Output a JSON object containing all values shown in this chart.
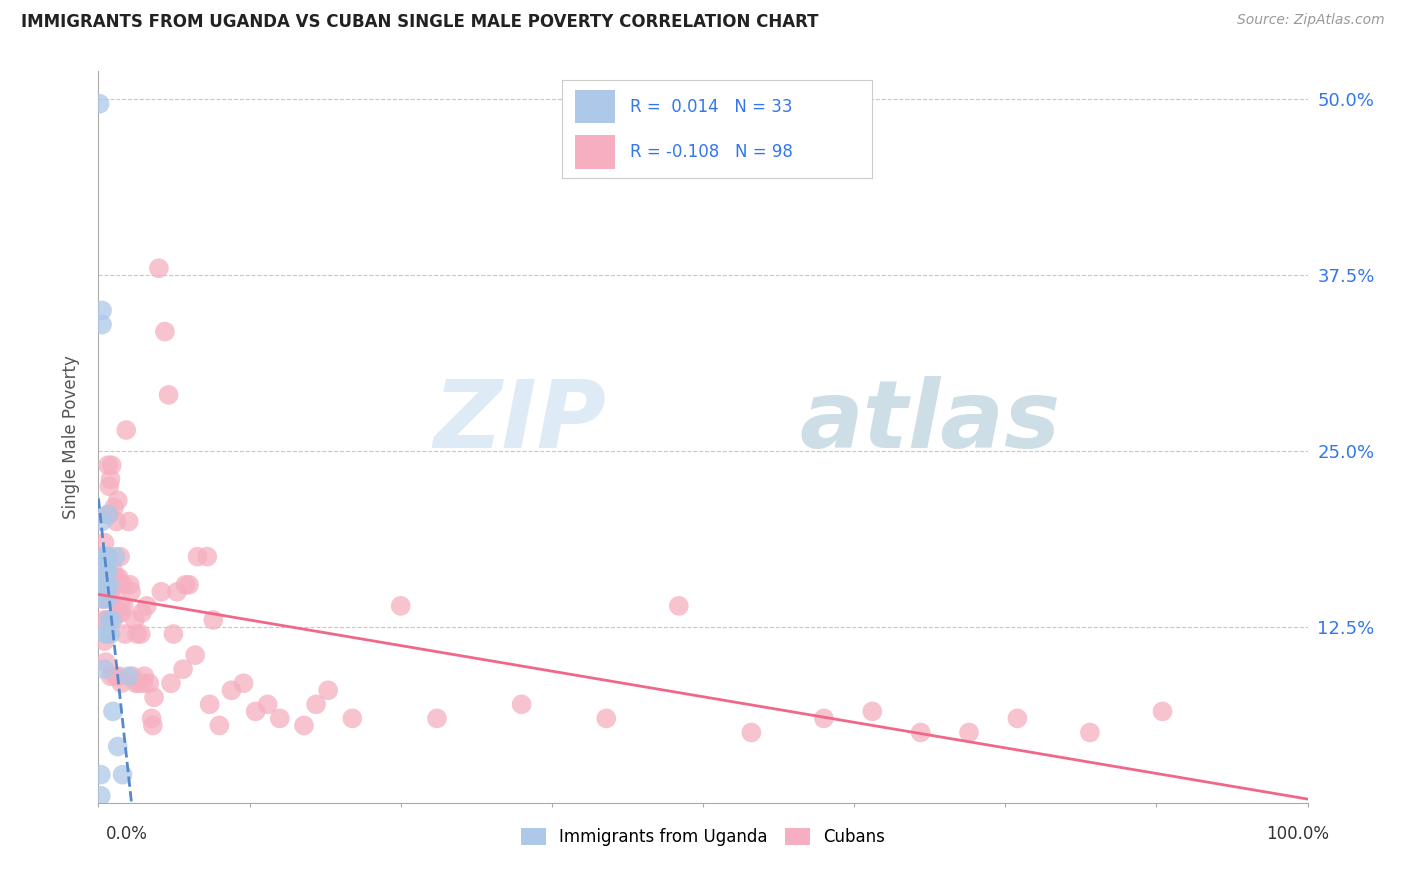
{
  "title": "IMMIGRANTS FROM UGANDA VS CUBAN SINGLE MALE POVERTY CORRELATION CHART",
  "source": "Source: ZipAtlas.com",
  "ylabel": "Single Male Poverty",
  "y_ticks": [
    0.0,
    0.125,
    0.25,
    0.375,
    0.5
  ],
  "y_tick_labels": [
    "",
    "12.5%",
    "25.0%",
    "37.5%",
    "50.0%"
  ],
  "legend1_r": "0.014",
  "legend1_n": "33",
  "legend2_r": "-0.108",
  "legend2_n": "98",
  "background_color": "#ffffff",
  "uganda_color": "#adc8e8",
  "cuban_color": "#f5afc0",
  "uganda_line_color": "#5588cc",
  "cuban_line_color": "#f06888",
  "watermark_zip": "ZIP",
  "watermark_atlas": "atlas",
  "uganda_scatter_x": [
    0.001,
    0.002,
    0.002,
    0.003,
    0.003,
    0.003,
    0.004,
    0.004,
    0.004,
    0.005,
    0.005,
    0.005,
    0.005,
    0.006,
    0.006,
    0.006,
    0.007,
    0.007,
    0.007,
    0.007,
    0.008,
    0.008,
    0.008,
    0.008,
    0.009,
    0.009,
    0.01,
    0.011,
    0.012,
    0.014,
    0.016,
    0.02,
    0.025
  ],
  "uganda_scatter_y": [
    0.497,
    0.005,
    0.02,
    0.35,
    0.34,
    0.2,
    0.17,
    0.155,
    0.145,
    0.175,
    0.165,
    0.155,
    0.095,
    0.175,
    0.165,
    0.12,
    0.175,
    0.165,
    0.155,
    0.12,
    0.205,
    0.175,
    0.165,
    0.145,
    0.155,
    0.13,
    0.12,
    0.13,
    0.065,
    0.175,
    0.04,
    0.02,
    0.09
  ],
  "cuban_scatter_x": [
    0.002,
    0.003,
    0.003,
    0.004,
    0.004,
    0.005,
    0.005,
    0.005,
    0.006,
    0.006,
    0.006,
    0.007,
    0.007,
    0.008,
    0.008,
    0.008,
    0.009,
    0.009,
    0.01,
    0.01,
    0.01,
    0.011,
    0.011,
    0.012,
    0.012,
    0.013,
    0.013,
    0.014,
    0.014,
    0.015,
    0.015,
    0.016,
    0.016,
    0.017,
    0.017,
    0.018,
    0.018,
    0.019,
    0.019,
    0.02,
    0.021,
    0.022,
    0.023,
    0.025,
    0.026,
    0.027,
    0.028,
    0.03,
    0.031,
    0.032,
    0.033,
    0.035,
    0.036,
    0.037,
    0.038,
    0.04,
    0.042,
    0.044,
    0.045,
    0.046,
    0.05,
    0.052,
    0.055,
    0.058,
    0.06,
    0.062,
    0.065,
    0.07,
    0.072,
    0.075,
    0.08,
    0.082,
    0.09,
    0.092,
    0.095,
    0.1,
    0.11,
    0.12,
    0.13,
    0.14,
    0.15,
    0.17,
    0.18,
    0.19,
    0.21,
    0.25,
    0.28,
    0.35,
    0.42,
    0.48,
    0.54,
    0.6,
    0.64,
    0.68,
    0.72,
    0.76,
    0.82,
    0.88
  ],
  "cuban_scatter_y": [
    0.155,
    0.145,
    0.16,
    0.145,
    0.175,
    0.13,
    0.115,
    0.185,
    0.145,
    0.1,
    0.175,
    0.13,
    0.155,
    0.24,
    0.155,
    0.205,
    0.225,
    0.205,
    0.23,
    0.09,
    0.15,
    0.24,
    0.145,
    0.165,
    0.13,
    0.21,
    0.155,
    0.155,
    0.09,
    0.2,
    0.16,
    0.215,
    0.135,
    0.16,
    0.09,
    0.14,
    0.175,
    0.135,
    0.085,
    0.155,
    0.14,
    0.12,
    0.265,
    0.2,
    0.155,
    0.15,
    0.09,
    0.13,
    0.085,
    0.12,
    0.085,
    0.12,
    0.135,
    0.085,
    0.09,
    0.14,
    0.085,
    0.06,
    0.055,
    0.075,
    0.38,
    0.15,
    0.335,
    0.29,
    0.085,
    0.12,
    0.15,
    0.095,
    0.155,
    0.155,
    0.105,
    0.175,
    0.175,
    0.07,
    0.13,
    0.055,
    0.08,
    0.085,
    0.065,
    0.07,
    0.06,
    0.055,
    0.07,
    0.08,
    0.06,
    0.14,
    0.06,
    0.07,
    0.06,
    0.14,
    0.05,
    0.06,
    0.065,
    0.05,
    0.05,
    0.06,
    0.05,
    0.065
  ]
}
